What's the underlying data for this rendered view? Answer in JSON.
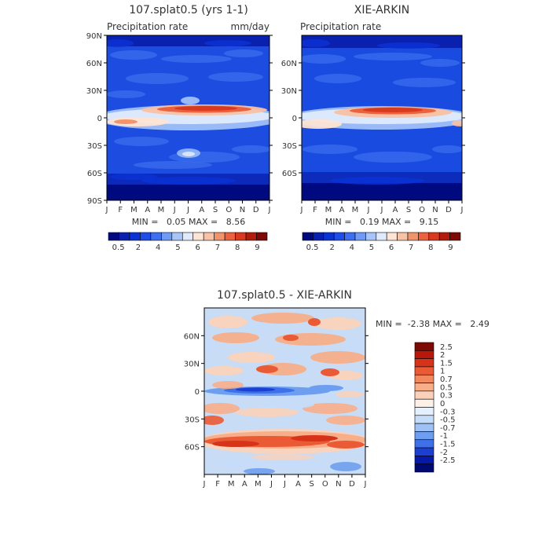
{
  "panels": [
    {
      "title": "107.splat0.5 (yrs 1-1)",
      "left_label": "Precipitation rate",
      "right_label": "mm/day",
      "stats": "MIN =   0.05 MAX =   8.56",
      "bg_color": "#1d4de0",
      "band_strength": 1.0
    },
    {
      "title": "XIE-ARKIN",
      "left_label": "Precipitation rate",
      "right_label": "",
      "stats": "MIN =   0.19 MAX =   9.15",
      "bg_color": "#1a4be0",
      "band_strength": 1.1
    },
    {
      "title": "107.splat0.5 - XIE-ARKIN",
      "left_label": "",
      "right_label": "",
      "stats": "MIN =  -2.38 MAX =   2.49",
      "bg_color": "#c8dcf5"
    }
  ],
  "chart_data": [
    {
      "type": "heatmap",
      "title": "107.splat0.5 (yrs 1-1)",
      "xlabel": "",
      "ylabel": "",
      "x_ticks": [
        "J",
        "F",
        "M",
        "A",
        "M",
        "J",
        "J",
        "A",
        "S",
        "O",
        "N",
        "D",
        "J"
      ],
      "y_ticks": [
        "90N",
        "60N",
        "30N",
        "0",
        "30S",
        "60S",
        "90S"
      ],
      "units": "mm/day",
      "min": 0.05,
      "max": 8.56,
      "colorbar_ticks": [
        "0.5",
        "2",
        "4",
        "5",
        "6",
        "7",
        "8",
        "9"
      ]
    },
    {
      "type": "heatmap",
      "title": "XIE-ARKIN",
      "xlabel": "",
      "ylabel": "",
      "x_ticks": [
        "J",
        "F",
        "M",
        "A",
        "M",
        "J",
        "J",
        "A",
        "S",
        "O",
        "N",
        "D",
        "J"
      ],
      "y_ticks": [
        "60N",
        "30N",
        "0",
        "30S",
        "60S"
      ],
      "min": 0.19,
      "max": 9.15,
      "colorbar_ticks": [
        "0.5",
        "2",
        "4",
        "5",
        "6",
        "7",
        "8",
        "9"
      ]
    },
    {
      "type": "heatmap",
      "title": "107.splat0.5 - XIE-ARKIN",
      "xlabel": "",
      "ylabel": "",
      "x_ticks": [
        "J",
        "F",
        "M",
        "A",
        "M",
        "J",
        "J",
        "A",
        "S",
        "O",
        "N",
        "D",
        "J"
      ],
      "y_ticks": [
        "60N",
        "30N",
        "0",
        "30S",
        "60S"
      ],
      "min": -2.38,
      "max": 2.49,
      "colorbar_ticks": [
        "2.5",
        "2",
        "1.5",
        "1",
        "0.7",
        "0.5",
        "0.3",
        "0",
        "-0.3",
        "-0.5",
        "-0.7",
        "-1",
        "-1.5",
        "-2",
        "-2.5"
      ]
    }
  ],
  "colors": {
    "seq_palette": [
      "#000a80",
      "#0a21b0",
      "#0a33d6",
      "#1f4de8",
      "#3d6ff0",
      "#6f9af5",
      "#a8c5fa",
      "#dfeafc",
      "#fde4d4",
      "#f8c2a6",
      "#f2946b",
      "#ea6240",
      "#d93a1f",
      "#b01d0d",
      "#7e0a05"
    ],
    "div_palette": [
      "#7e0a05",
      "#b8180a",
      "#d63318",
      "#ea5a35",
      "#f2895e",
      "#f7ae89",
      "#fbd2b9",
      "#fdf0e6",
      "#e4efff",
      "#c5dcfa",
      "#9ec2f5",
      "#6e9ef0",
      "#3e70e8",
      "#1a3fd2",
      "#0719a8",
      "#000873"
    ]
  }
}
